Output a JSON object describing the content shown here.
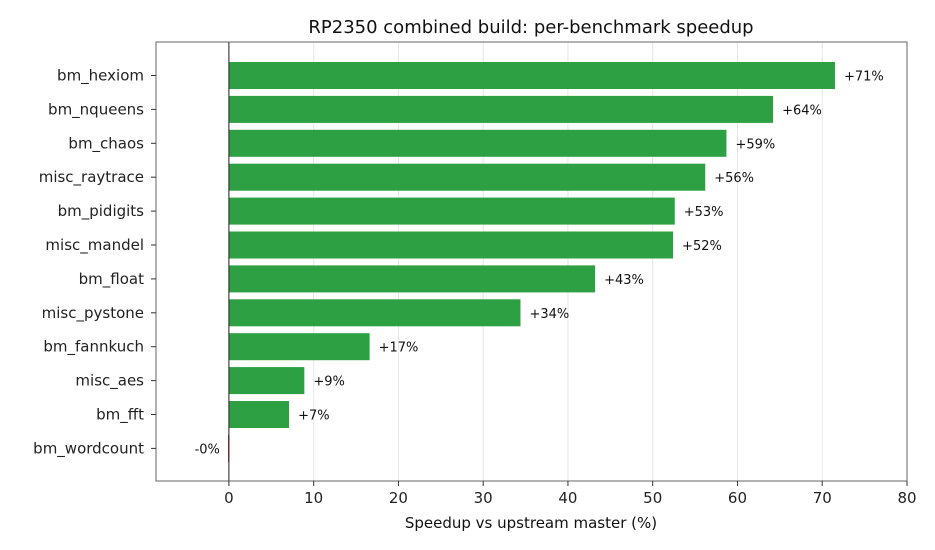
{
  "chart_data": {
    "type": "bar",
    "orientation": "horizontal",
    "title": "RP2350 combined build: per-benchmark speedup",
    "xlabel": "Speedup vs upstream master (%)",
    "ylabel": "",
    "xlim": [
      -8.6,
      80
    ],
    "xticks": [
      0,
      10,
      20,
      30,
      40,
      50,
      60,
      70,
      80
    ],
    "grid": "vertical",
    "categories": [
      "bm_hexiom",
      "bm_nqueens",
      "bm_chaos",
      "misc_raytrace",
      "bm_pidigits",
      "misc_mandel",
      "bm_float",
      "misc_pystone",
      "bm_fannkuch",
      "misc_aes",
      "bm_fft",
      "bm_wordcount"
    ],
    "values": [
      71.5,
      64.2,
      58.7,
      56.2,
      52.6,
      52.4,
      43.2,
      34.4,
      16.6,
      8.9,
      7.1,
      -0.1
    ],
    "labels": [
      "+71%",
      "+64%",
      "+59%",
      "+56%",
      "+53%",
      "+52%",
      "+43%",
      "+34%",
      "+17%",
      "+9%",
      "+7%",
      "-0%"
    ],
    "colors": {
      "positive": "#2ca043",
      "negative": "#d62728"
    }
  }
}
